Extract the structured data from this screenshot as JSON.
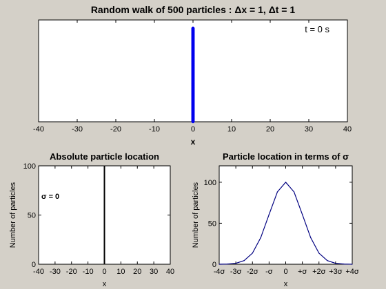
{
  "colors": {
    "figure_bg": "#d4d0c8",
    "axes_bg": "#ffffff",
    "particles": "#0000ee",
    "hist": "#000000",
    "curve": "#000080"
  },
  "chart_data": [
    {
      "id": "top",
      "type": "scatter",
      "title": "Random walk of 500 particles : Δx = 1, Δt = 1",
      "annotation": "t = 0 s",
      "xlabel": "x",
      "ylabel": "",
      "xlim": [
        -40,
        40
      ],
      "ylim": [
        0,
        1
      ],
      "xticks": [
        -40,
        -30,
        -20,
        -10,
        0,
        10,
        20,
        30,
        40
      ],
      "xtick_labels": [
        "-40",
        "-30",
        "-20",
        "-10",
        "0",
        "10",
        "20",
        "30",
        "40"
      ],
      "yticks": [],
      "grid": false,
      "particles": {
        "count": 500,
        "x": 0,
        "y_range": [
          0.0,
          0.92
        ]
      }
    },
    {
      "id": "bottom-left",
      "type": "bar",
      "title": "Absolute particle location",
      "annotation": "σ = 0",
      "xlabel": "x",
      "ylabel": "Number of particles",
      "xlim": [
        -40,
        40
      ],
      "ylim": [
        0,
        100
      ],
      "xticks": [
        -40,
        -30,
        -20,
        -10,
        0,
        10,
        20,
        30,
        40
      ],
      "xtick_labels": [
        "-40",
        "-30",
        "-20",
        "-10",
        "0",
        "10",
        "20",
        "30",
        "40"
      ],
      "yticks": [
        0,
        50,
        100
      ],
      "ytick_labels": [
        "0",
        "50",
        "100"
      ],
      "grid": false,
      "bars": [
        {
          "x": 0,
          "value": 100
        }
      ]
    },
    {
      "id": "bottom-right",
      "type": "line",
      "title": "Particle location in terms of σ",
      "xlabel": "x",
      "ylabel": "Number of particles",
      "xlim": [
        -4,
        4
      ],
      "ylim": [
        0,
        120
      ],
      "xticks": [
        -4,
        -3,
        -2,
        -1,
        0,
        1,
        2,
        3,
        4
      ],
      "xtick_labels": [
        "-4σ",
        "-3σ",
        "-2σ",
        "-σ",
        "0",
        "+σ",
        "+2σ",
        "+3σ",
        "+4σ"
      ],
      "yticks": [
        0,
        50,
        100
      ],
      "ytick_labels": [
        "0",
        "50",
        "100"
      ],
      "grid": false,
      "series": [
        {
          "x": [
            -4,
            -3.5,
            -3,
            -2.5,
            -2,
            -1.5,
            -1,
            -0.5,
            0,
            0.5,
            1,
            1.5,
            2,
            2.5,
            3,
            3.5,
            4
          ],
          "values": [
            0.03,
            0.2,
            1.1,
            4.4,
            13.5,
            32.5,
            60.7,
            88.2,
            100,
            88.2,
            60.7,
            32.5,
            13.5,
            4.4,
            1.1,
            0.2,
            0.03
          ]
        }
      ]
    }
  ]
}
